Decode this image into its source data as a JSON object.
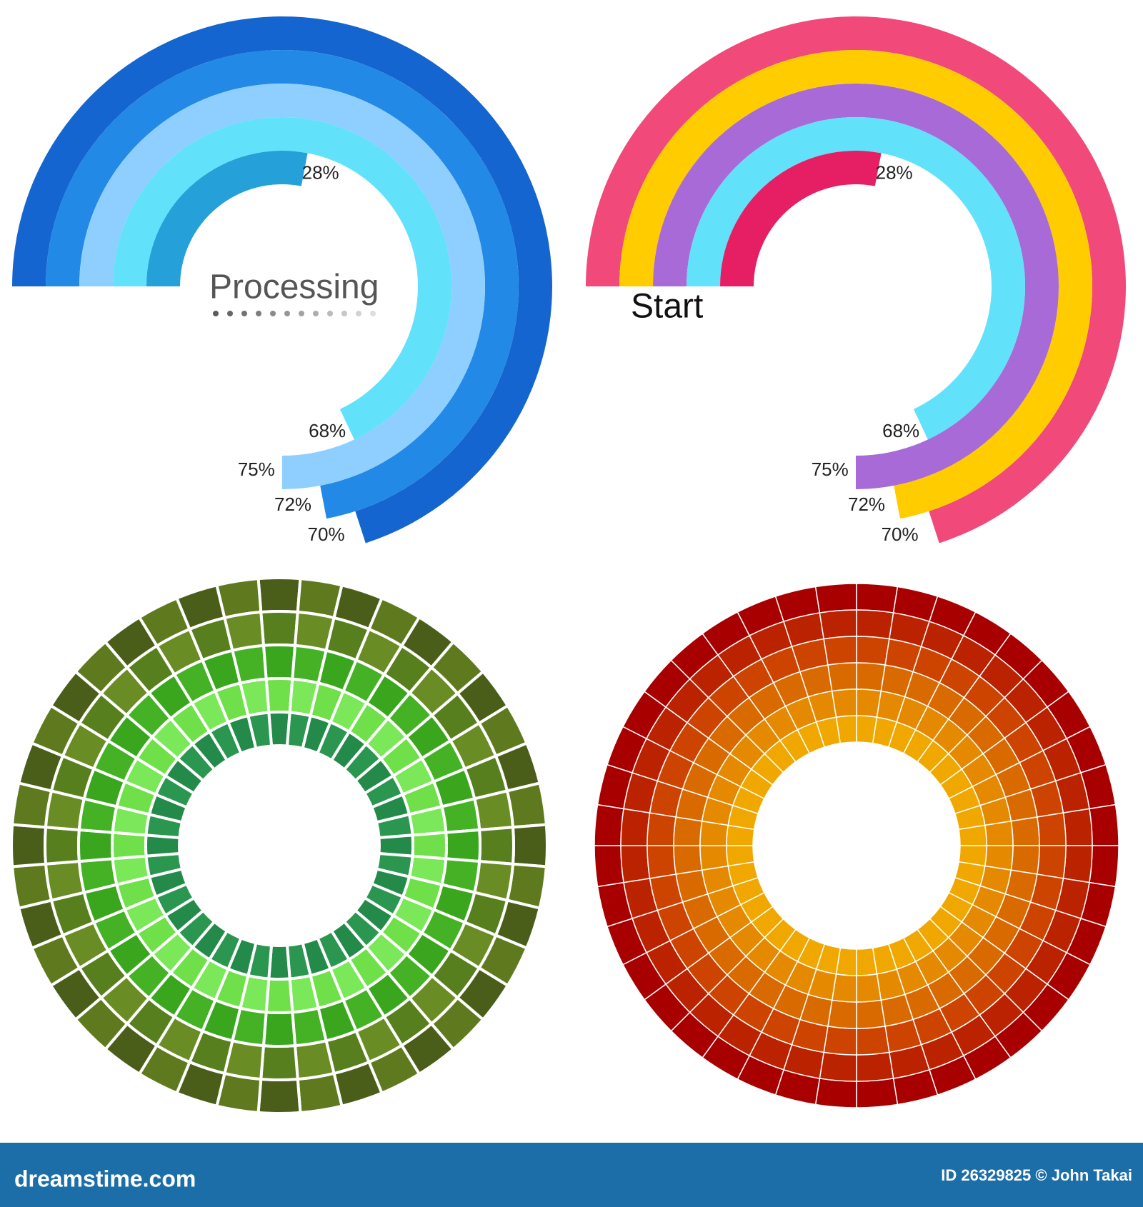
{
  "chart_data": [
    {
      "type": "radial_progress",
      "center_label": "Processing",
      "values": [
        70,
        72,
        75,
        68,
        28
      ],
      "value_labels": [
        "70%",
        "72%",
        "75%",
        "68%",
        "28%"
      ],
      "colors": [
        "#1565d0",
        "#2389e6",
        "#8ecfff",
        "#62e1fb",
        "#26a0d8"
      ]
    },
    {
      "type": "radial_progress",
      "center_label": "Start",
      "values": [
        70,
        72,
        75,
        68,
        28
      ],
      "value_labels": [
        "70%",
        "72%",
        "75%",
        "68%",
        "28%"
      ],
      "colors": [
        "#f0497a",
        "#ffcc00",
        "#a86ad6",
        "#62e1fb",
        "#e61e64"
      ]
    }
  ],
  "footer": {
    "site": "dreamstime.com",
    "credit": "ID 26329825 © John Takai"
  }
}
